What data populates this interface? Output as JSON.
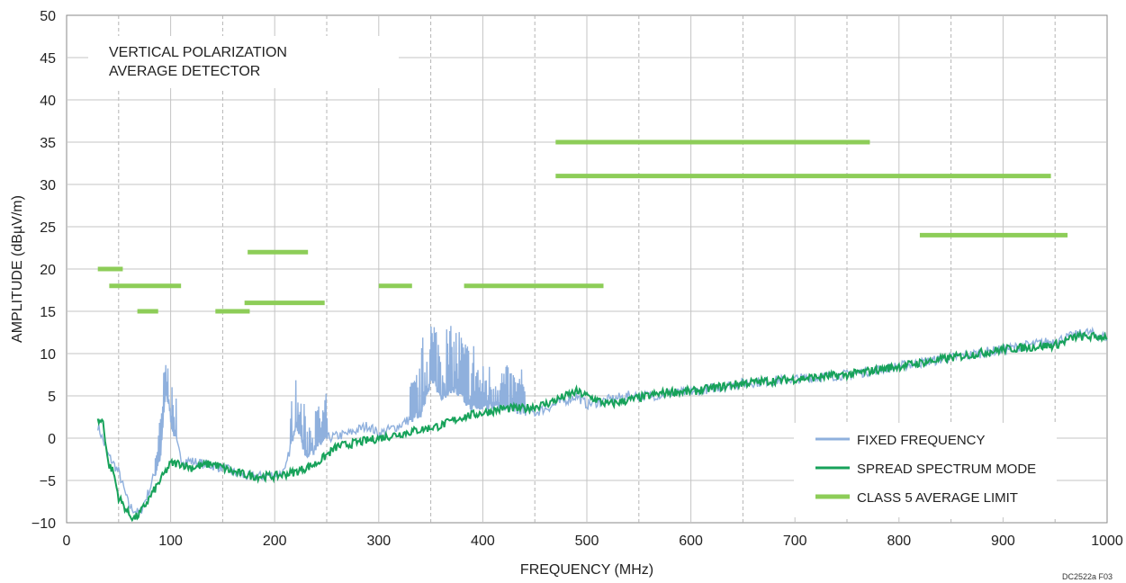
{
  "chart_data": {
    "type": "line",
    "title": "",
    "annotation": [
      "VERTICAL POLARIZATION",
      "AVERAGE DETECTOR"
    ],
    "xlabel": "FREQUENCY (MHz)",
    "ylabel": "AMPLITUDE (dBµV/m)",
    "xlim": [
      0,
      1000
    ],
    "ylim": [
      -10,
      50
    ],
    "xticks": [
      0,
      100,
      200,
      300,
      400,
      500,
      600,
      700,
      800,
      900,
      1000
    ],
    "yticks": [
      -10,
      -5,
      0,
      5,
      10,
      15,
      20,
      25,
      30,
      35,
      40,
      45,
      50
    ],
    "ytick_labels": [
      "−10",
      "−5",
      "0",
      "5",
      "10",
      "15",
      "20",
      "25",
      "30",
      "35",
      "40",
      "45",
      "50"
    ],
    "grid": true,
    "legend_position": "bottom-right",
    "figure_id": "DC2522a F03",
    "series": [
      {
        "name": "FIXED FREQUENCY",
        "color": "#8fb0dd",
        "x": [
          30,
          40,
          50,
          60,
          70,
          80,
          90,
          95,
          100,
          110,
          130,
          150,
          170,
          190,
          210,
          220,
          230,
          250,
          270,
          290,
          300,
          320,
          340,
          350,
          360,
          370,
          390,
          410,
          430,
          450,
          470,
          490,
          500,
          520,
          540,
          560,
          600,
          650,
          700,
          750,
          800,
          850,
          900,
          950,
          980,
          1000
        ],
        "y": [
          1.5,
          -2,
          -4,
          -8,
          -9,
          -6,
          -2,
          6,
          2,
          -2.5,
          -3,
          -3.5,
          -4.5,
          -4.5,
          -4,
          2,
          -2,
          0,
          0.5,
          1.5,
          0.5,
          1.5,
          3,
          7,
          5,
          6,
          3.5,
          4,
          3.5,
          3,
          4,
          5,
          4,
          4.5,
          5,
          5,
          5.5,
          6.5,
          7,
          7.5,
          8.5,
          9.5,
          10.5,
          11.5,
          12.5,
          12
        ]
      },
      {
        "name": "SPREAD SPECTRUM MODE",
        "color": "#17a25a",
        "x": [
          30,
          35,
          40,
          45,
          50,
          55,
          60,
          65,
          70,
          80,
          90,
          100,
          110,
          120,
          140,
          160,
          180,
          200,
          220,
          240,
          260,
          280,
          300,
          320,
          340,
          360,
          380,
          400,
          420,
          440,
          460,
          480,
          490,
          500,
          520,
          540,
          560,
          580,
          600,
          650,
          700,
          750,
          800,
          850,
          900,
          950,
          970,
          1000
        ],
        "y": [
          2,
          2,
          -3,
          -4,
          -7,
          -8,
          -9,
          -9.5,
          -9,
          -7,
          -5,
          -3,
          -3,
          -3.5,
          -3,
          -4,
          -4.5,
          -4.5,
          -4,
          -3,
          -1,
          -0.5,
          0,
          0.5,
          1,
          1.5,
          2.5,
          3,
          3.5,
          3.5,
          4,
          5,
          5.5,
          5,
          4,
          4.5,
          5,
          5.5,
          5.5,
          6.5,
          7,
          7.5,
          8.5,
          9.5,
          10.5,
          11,
          12,
          12
        ]
      },
      {
        "name": "CLASS 5 AVERAGE LIMIT",
        "color": "#8dcd58",
        "segments": [
          {
            "x": [
              30,
              54
            ],
            "y": 20
          },
          {
            "x": [
              41,
              110
            ],
            "y": 18
          },
          {
            "x": [
              68,
              88
            ],
            "y": 15
          },
          {
            "x": [
              143,
              176
            ],
            "y": 15
          },
          {
            "x": [
              174,
              232
            ],
            "y": 22
          },
          {
            "x": [
              171,
              248
            ],
            "y": 16
          },
          {
            "x": [
              300,
              332
            ],
            "y": 18
          },
          {
            "x": [
              382,
              516
            ],
            "y": 18
          },
          {
            "x": [
              470,
              772
            ],
            "y": 35
          },
          {
            "x": [
              470,
              946
            ],
            "y": 31
          },
          {
            "x": [
              820,
              962
            ],
            "y": 24
          }
        ]
      }
    ]
  }
}
